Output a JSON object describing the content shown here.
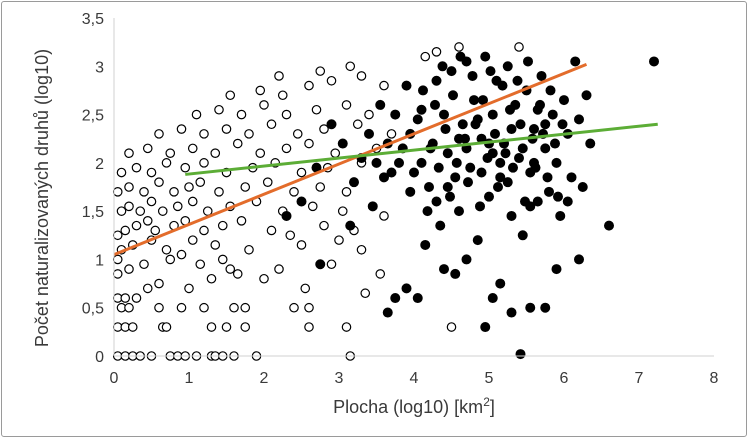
{
  "chart_data": {
    "type": "scatter",
    "title": "",
    "xlabel": "Plocha (log10) [km",
    "xlabel_sup": "2",
    "xlabel_tail": "]",
    "ylabel": "Počet naturalizovaných druhů (log10)",
    "xlim": [
      0,
      8
    ],
    "ylim": [
      0,
      3.5
    ],
    "x_ticks": [
      0,
      1,
      2,
      3,
      4,
      5,
      6,
      7,
      8
    ],
    "x_tick_labels": [
      "0",
      "1",
      "2",
      "3",
      "4",
      "5",
      "6",
      "7",
      "8"
    ],
    "y_ticks": [
      0,
      0.5,
      1,
      1.5,
      2,
      2.5,
      3,
      3.5
    ],
    "y_tick_labels": [
      "0",
      "0,5",
      "1",
      "1,5",
      "2",
      "2,5",
      "3",
      "3,5"
    ],
    "grid": false,
    "legend": "none",
    "series": [
      {
        "marker": "open-circle",
        "color": "#000000",
        "points": [
          [
            0.05,
            0
          ],
          [
            0.15,
            0
          ],
          [
            0.25,
            0
          ],
          [
            0.35,
            0
          ],
          [
            0.5,
            0
          ],
          [
            0.75,
            0
          ],
          [
            0.85,
            0
          ],
          [
            0.95,
            0
          ],
          [
            1.1,
            0
          ],
          [
            1.3,
            0
          ],
          [
            1.35,
            0
          ],
          [
            1.45,
            0
          ],
          [
            1.6,
            0
          ],
          [
            1.9,
            0
          ],
          [
            3.15,
            0
          ],
          [
            0.05,
            0.3
          ],
          [
            0.15,
            0.3
          ],
          [
            0.25,
            0.3
          ],
          [
            0.65,
            0.3
          ],
          [
            0.7,
            0.3
          ],
          [
            1.3,
            0.3
          ],
          [
            1.5,
            0.3
          ],
          [
            1.75,
            0.3
          ],
          [
            2.6,
            0.3
          ],
          [
            3.1,
            0.3
          ],
          [
            4.5,
            0.3
          ],
          [
            0.1,
            0.5
          ],
          [
            0.2,
            0.5
          ],
          [
            0.6,
            0.5
          ],
          [
            0.9,
            0.5
          ],
          [
            1.2,
            0.5
          ],
          [
            1.6,
            0.5
          ],
          [
            1.75,
            0.5
          ],
          [
            2.4,
            0.5
          ],
          [
            2.6,
            0.5
          ],
          [
            0.05,
            0.6
          ],
          [
            0.15,
            0.6
          ],
          [
            0.3,
            0.6
          ],
          [
            0.45,
            0.7
          ],
          [
            0.6,
            0.75
          ],
          [
            1.0,
            0.7
          ],
          [
            1.3,
            0.8
          ],
          [
            1.65,
            0.85
          ],
          [
            2.0,
            0.8
          ],
          [
            2.55,
            0.7
          ],
          [
            3.35,
            0.65
          ],
          [
            0.05,
            0.85
          ],
          [
            0.2,
            0.9
          ],
          [
            0.4,
            0.95
          ],
          [
            0.75,
            1.0
          ],
          [
            0.9,
            1.05
          ],
          [
            1.15,
            0.95
          ],
          [
            1.45,
            1.0
          ],
          [
            1.55,
            0.9
          ],
          [
            2.2,
            0.9
          ],
          [
            2.9,
            0.95
          ],
          [
            3.55,
            0.85
          ],
          [
            0.05,
            1.0
          ],
          [
            0.1,
            1.1
          ],
          [
            0.25,
            1.15
          ],
          [
            0.5,
            1.2
          ],
          [
            0.7,
            1.1
          ],
          [
            1.05,
            1.2
          ],
          [
            1.35,
            1.15
          ],
          [
            1.8,
            1.1
          ],
          [
            2.5,
            1.15
          ],
          [
            3.0,
            1.2
          ],
          [
            3.3,
            1.1
          ],
          [
            0.05,
            1.25
          ],
          [
            0.15,
            1.3
          ],
          [
            0.3,
            1.35
          ],
          [
            0.45,
            1.4
          ],
          [
            0.55,
            1.3
          ],
          [
            0.8,
            1.35
          ],
          [
            0.95,
            1.4
          ],
          [
            1.2,
            1.3
          ],
          [
            1.45,
            1.35
          ],
          [
            1.7,
            1.4
          ],
          [
            2.1,
            1.3
          ],
          [
            2.35,
            1.25
          ],
          [
            2.8,
            1.35
          ],
          [
            3.2,
            1.3
          ],
          [
            0.1,
            1.5
          ],
          [
            0.2,
            1.55
          ],
          [
            0.35,
            1.5
          ],
          [
            0.5,
            1.6
          ],
          [
            0.65,
            1.5
          ],
          [
            0.85,
            1.55
          ],
          [
            1.05,
            1.6
          ],
          [
            1.25,
            1.5
          ],
          [
            1.55,
            1.55
          ],
          [
            1.9,
            1.6
          ],
          [
            2.25,
            1.5
          ],
          [
            2.65,
            1.55
          ],
          [
            3.05,
            1.5
          ],
          [
            3.6,
            1.45
          ],
          [
            0.05,
            1.7
          ],
          [
            0.2,
            1.75
          ],
          [
            0.4,
            1.7
          ],
          [
            0.6,
            1.8
          ],
          [
            0.8,
            1.7
          ],
          [
            1.0,
            1.75
          ],
          [
            1.15,
            1.8
          ],
          [
            1.4,
            1.7
          ],
          [
            1.75,
            1.75
          ],
          [
            2.05,
            1.8
          ],
          [
            2.4,
            1.7
          ],
          [
            2.75,
            1.75
          ],
          [
            3.1,
            1.7
          ],
          [
            0.1,
            1.9
          ],
          [
            0.3,
            1.95
          ],
          [
            0.5,
            1.9
          ],
          [
            0.7,
            2.0
          ],
          [
            0.95,
            1.95
          ],
          [
            1.2,
            2.0
          ],
          [
            1.5,
            1.9
          ],
          [
            1.85,
            1.95
          ],
          [
            2.15,
            2.0
          ],
          [
            2.5,
            1.9
          ],
          [
            2.85,
            1.95
          ],
          [
            3.3,
            2.0
          ],
          [
            0.2,
            2.1
          ],
          [
            0.45,
            2.15
          ],
          [
            0.75,
            2.1
          ],
          [
            1.05,
            2.15
          ],
          [
            1.35,
            2.1
          ],
          [
            1.65,
            2.2
          ],
          [
            1.95,
            2.1
          ],
          [
            2.3,
            2.15
          ],
          [
            2.6,
            2.2
          ],
          [
            2.95,
            2.1
          ],
          [
            3.5,
            2.15
          ],
          [
            0.6,
            2.3
          ],
          [
            0.9,
            2.35
          ],
          [
            1.2,
            2.3
          ],
          [
            1.5,
            2.35
          ],
          [
            1.8,
            2.3
          ],
          [
            2.1,
            2.4
          ],
          [
            2.45,
            2.3
          ],
          [
            2.8,
            2.35
          ],
          [
            3.25,
            2.4
          ],
          [
            3.7,
            2.3
          ],
          [
            1.1,
            2.5
          ],
          [
            1.4,
            2.55
          ],
          [
            1.7,
            2.5
          ],
          [
            2.0,
            2.6
          ],
          [
            2.3,
            2.5
          ],
          [
            2.7,
            2.55
          ],
          [
            3.1,
            2.6
          ],
          [
            3.4,
            2.5
          ],
          [
            1.55,
            2.7
          ],
          [
            1.95,
            2.75
          ],
          [
            2.25,
            2.7
          ],
          [
            2.6,
            2.8
          ],
          [
            2.9,
            2.85
          ],
          [
            3.3,
            2.9
          ],
          [
            3.6,
            2.8
          ],
          [
            2.2,
            2.9
          ],
          [
            2.75,
            2.95
          ],
          [
            3.15,
            3.0
          ],
          [
            4.15,
            3.1
          ],
          [
            4.3,
            3.15
          ],
          [
            4.6,
            3.2
          ],
          [
            5.4,
            3.2
          ]
        ]
      },
      {
        "marker": "filled-circle",
        "color": "#000000",
        "points": [
          [
            7.2,
            3.05
          ],
          [
            6.6,
            1.35
          ],
          [
            6.2,
            1.0
          ],
          [
            6.05,
            1.6
          ],
          [
            5.9,
            0.9
          ],
          [
            5.75,
            0.5
          ],
          [
            5.55,
            0.5
          ],
          [
            5.42,
            0.02
          ],
          [
            5.3,
            0.45
          ],
          [
            5.15,
            0.75
          ],
          [
            4.95,
            0.3
          ],
          [
            4.7,
            1.0
          ],
          [
            4.55,
            0.85
          ],
          [
            4.4,
            0.9
          ],
          [
            4.05,
            0.6
          ],
          [
            3.9,
            0.7
          ],
          [
            3.75,
            0.6
          ],
          [
            3.65,
            0.45
          ],
          [
            2.75,
            0.95
          ],
          [
            4.15,
            1.15
          ],
          [
            5.05,
            0.6
          ],
          [
            3.15,
            1.35
          ],
          [
            3.45,
            1.55
          ],
          [
            3.6,
            1.85
          ],
          [
            3.8,
            2.0
          ],
          [
            3.95,
            2.3
          ],
          [
            4.1,
            2.55
          ],
          [
            4.2,
            1.75
          ],
          [
            4.3,
            2.85
          ],
          [
            4.35,
            1.35
          ],
          [
            4.45,
            2.1
          ],
          [
            4.5,
            2.95
          ],
          [
            4.6,
            1.5
          ],
          [
            4.65,
            2.4
          ],
          [
            4.7,
            3.05
          ],
          [
            4.75,
            1.95
          ],
          [
            4.8,
            2.65
          ],
          [
            4.85,
            1.2
          ],
          [
            4.9,
            2.25
          ],
          [
            4.95,
            3.1
          ],
          [
            5.0,
            1.65
          ],
          [
            5.05,
            2.5
          ],
          [
            5.1,
            2.85
          ],
          [
            5.15,
            1.85
          ],
          [
            5.2,
            2.2
          ],
          [
            5.25,
            3.0
          ],
          [
            5.3,
            1.45
          ],
          [
            5.35,
            2.6
          ],
          [
            5.4,
            2.05
          ],
          [
            5.45,
            1.25
          ],
          [
            5.5,
            2.75
          ],
          [
            5.55,
            1.9
          ],
          [
            5.6,
            2.35
          ],
          [
            5.65,
            1.6
          ],
          [
            5.7,
            2.9
          ],
          [
            5.75,
            2.15
          ],
          [
            5.8,
            1.7
          ],
          [
            5.85,
            2.5
          ],
          [
            5.9,
            2.0
          ],
          [
            5.95,
            1.45
          ],
          [
            6.0,
            2.65
          ],
          [
            6.05,
            2.3
          ],
          [
            6.1,
            1.85
          ],
          [
            6.15,
            3.05
          ],
          [
            6.2,
            2.45
          ],
          [
            6.25,
            1.75
          ],
          [
            6.3,
            2.7
          ],
          [
            6.35,
            2.2
          ],
          [
            4.0,
            1.9
          ],
          [
            4.05,
            2.45
          ],
          [
            4.12,
            2.75
          ],
          [
            4.18,
            1.5
          ],
          [
            4.22,
            2.15
          ],
          [
            4.28,
            2.6
          ],
          [
            4.33,
            1.95
          ],
          [
            4.38,
            3.0
          ],
          [
            4.42,
            2.35
          ],
          [
            4.48,
            1.65
          ],
          [
            4.52,
            2.7
          ],
          [
            4.57,
            2.0
          ],
          [
            4.62,
            3.1
          ],
          [
            4.68,
            2.25
          ],
          [
            4.72,
            1.8
          ],
          [
            4.78,
            2.9
          ],
          [
            4.82,
            2.4
          ],
          [
            4.88,
            1.55
          ],
          [
            4.92,
            2.65
          ],
          [
            4.98,
            2.05
          ],
          [
            5.02,
            2.95
          ],
          [
            5.08,
            2.3
          ],
          [
            5.12,
            1.75
          ],
          [
            5.18,
            2.8
          ],
          [
            5.22,
            2.1
          ],
          [
            5.28,
            2.55
          ],
          [
            5.32,
            1.95
          ],
          [
            5.38,
            2.85
          ],
          [
            5.42,
            2.4
          ],
          [
            5.48,
            1.6
          ],
          [
            5.52,
            3.05
          ],
          [
            5.58,
            2.25
          ],
          [
            5.62,
            1.95
          ],
          [
            5.68,
            2.6
          ],
          [
            5.72,
            2.3
          ],
          [
            5.78,
            1.85
          ],
          [
            5.82,
            2.75
          ],
          [
            5.88,
            2.2
          ],
          [
            5.92,
            1.65
          ],
          [
            5.98,
            2.4
          ],
          [
            3.3,
            2.05
          ],
          [
            3.4,
            2.3
          ],
          [
            3.5,
            2.0
          ],
          [
            3.55,
            2.6
          ],
          [
            3.65,
            2.2
          ],
          [
            3.7,
            1.9
          ],
          [
            3.75,
            2.5
          ],
          [
            3.85,
            2.15
          ],
          [
            3.9,
            2.8
          ],
          [
            3.95,
            1.7
          ],
          [
            2.9,
            2.4
          ],
          [
            2.7,
            1.95
          ],
          [
            2.5,
            1.6
          ],
          [
            2.3,
            1.45
          ],
          [
            3.05,
            2.2
          ],
          [
            3.2,
            1.8
          ],
          [
            4.1,
            2.0
          ],
          [
            4.25,
            2.2
          ],
          [
            4.4,
            2.5
          ],
          [
            4.55,
            1.85
          ],
          [
            4.7,
            2.15
          ],
          [
            4.85,
            2.45
          ],
          [
            5.0,
            2.2
          ],
          [
            5.15,
            2.0
          ],
          [
            5.3,
            2.35
          ],
          [
            5.45,
            2.15
          ],
          [
            5.6,
            2.0
          ],
          [
            5.75,
            2.4
          ],
          [
            4.9,
            1.9
          ],
          [
            5.05,
            2.1
          ],
          [
            4.6,
            2.25
          ],
          [
            5.25,
            1.8
          ],
          [
            4.45,
            1.75
          ],
          [
            5.55,
            1.55
          ],
          [
            4.3,
            1.6
          ],
          [
            5.65,
            2.55
          ]
        ]
      }
    ],
    "trendlines": [
      {
        "color": "#e36c2b",
        "x": [
          0,
          6.3
        ],
        "y": [
          1.05,
          3.02
        ]
      },
      {
        "color": "#5cad36",
        "x": [
          0.95,
          7.25
        ],
        "y": [
          1.88,
          2.4
        ]
      }
    ]
  }
}
